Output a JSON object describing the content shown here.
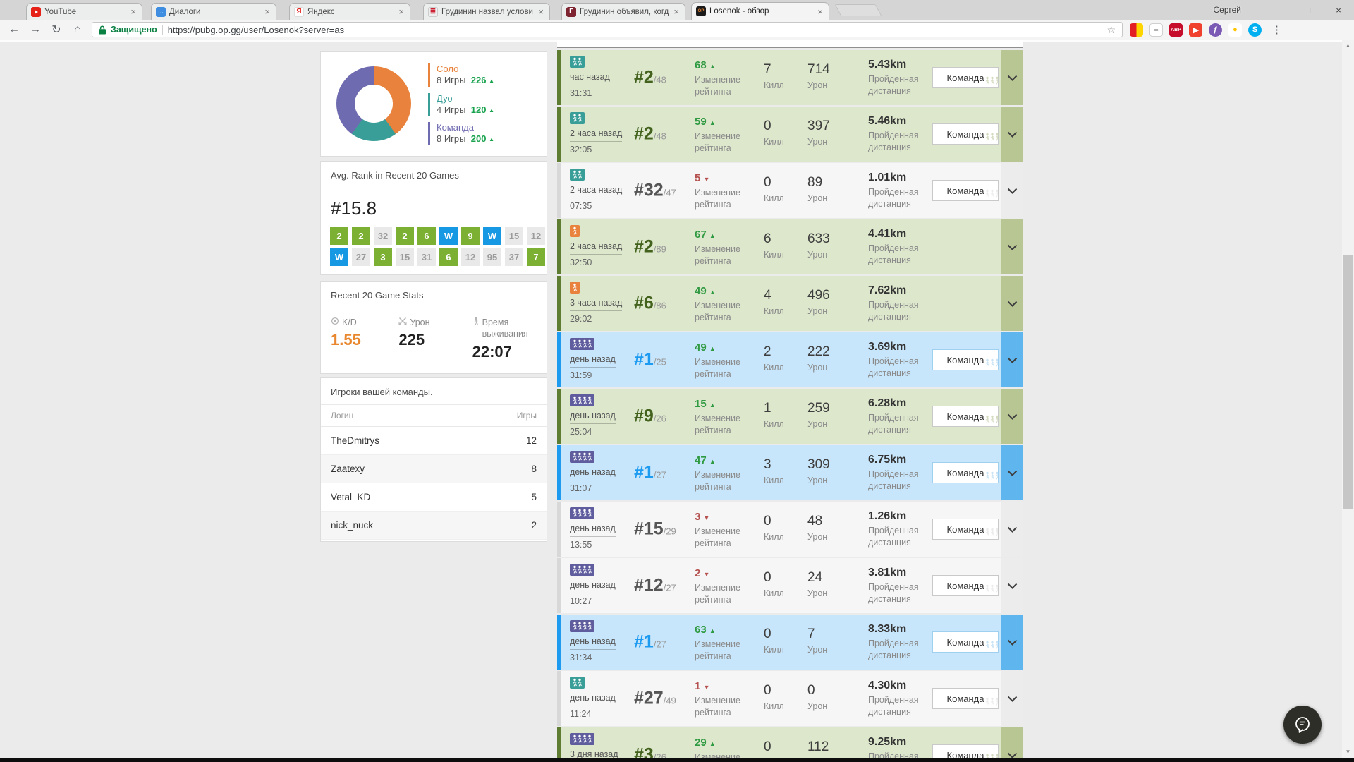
{
  "browser": {
    "profile": "Сергей",
    "window_controls": {
      "minimize": "–",
      "restore": "□",
      "close": "×"
    },
    "tabs": [
      {
        "title": "YouTube",
        "favicon": "youtube",
        "close": "×"
      },
      {
        "title": "Диалоги",
        "favicon": "dialogs",
        "close": "×"
      },
      {
        "title": "Яндекс",
        "favicon": "yandex",
        "close": "×"
      },
      {
        "title": "Грудинин назвал услови",
        "favicon": "news-grey",
        "close": "×"
      },
      {
        "title": "Грудинин объявил, когд",
        "favicon": "news-red",
        "close": "×"
      },
      {
        "title": "Losenok - обзор",
        "favicon": "opgg",
        "close": "×",
        "active": true
      }
    ],
    "nav": {
      "back": "←",
      "forward": "→",
      "reload": "↻",
      "home": "⌂"
    },
    "address": {
      "security": "Защищено",
      "url": "https://pubg.op.gg/user/Losenok?server=as",
      "star": "☆"
    },
    "extensions": [
      {
        "name": "yandex-elements-icon",
        "style": "split",
        "label": "",
        "bg": "",
        "color": ""
      },
      {
        "name": "rings-ext-icon",
        "style": "",
        "label": "≡",
        "bg": "#ffffff",
        "color": "#9a9a9a"
      },
      {
        "name": "adblock-plus-icon",
        "style": "",
        "label": "ABP",
        "bg": "#c70d2c",
        "color": "#ffffff"
      },
      {
        "name": "pointer-ext-icon",
        "style": "",
        "label": "▶",
        "bg": "#f0402e",
        "color": "#ffffff"
      },
      {
        "name": "lightshot-ext-icon",
        "style": "",
        "label": "ƒ",
        "bg": "#7b5ab5",
        "color": "#ffffff"
      },
      {
        "name": "bulb-ext-icon",
        "style": "",
        "label": "●",
        "bg": "#ffffff",
        "color": "#ffc400"
      },
      {
        "name": "skype-ext-icon",
        "style": "",
        "label": "S",
        "bg": "#00aff0",
        "color": "#ffffff"
      }
    ],
    "menu_dots": "⋮"
  },
  "sidebar": {
    "modes": {
      "donut_values": {
        "solo_games": 8,
        "duo_games": 4,
        "squad_games": 8
      },
      "legend": [
        {
          "name": "Соло",
          "games": "8 Игры",
          "value": "226",
          "color": "#e8823c"
        },
        {
          "name": "Дуо",
          "games": "4 Игры",
          "value": "120",
          "color": "#3a9e98"
        },
        {
          "name": "Команда",
          "games": "8 Игры",
          "value": "200",
          "color": "#6f6bb0"
        }
      ]
    },
    "avg_rank": {
      "title": "Avg. Rank in Recent 20 Games",
      "value": "#15.8",
      "tiles": [
        {
          "label": "2",
          "type": "top"
        },
        {
          "label": "2",
          "type": "top"
        },
        {
          "label": "32",
          "type": "out"
        },
        {
          "label": "2",
          "type": "top"
        },
        {
          "label": "6",
          "type": "top"
        },
        {
          "label": "W",
          "type": "win"
        },
        {
          "label": "9",
          "type": "top"
        },
        {
          "label": "W",
          "type": "win"
        },
        {
          "label": "15",
          "type": "out"
        },
        {
          "label": "12",
          "type": "out"
        },
        {
          "label": "W",
          "type": "win"
        },
        {
          "label": "27",
          "type": "out"
        },
        {
          "label": "3",
          "type": "top"
        },
        {
          "label": "15",
          "type": "out"
        },
        {
          "label": "31",
          "type": "out"
        },
        {
          "label": "6",
          "type": "top"
        },
        {
          "label": "12",
          "type": "out"
        },
        {
          "label": "95",
          "type": "out"
        },
        {
          "label": "37",
          "type": "out"
        },
        {
          "label": "7",
          "type": "top"
        }
      ]
    },
    "stats": {
      "title": "Recent 20 Game Stats",
      "items": [
        {
          "icon": "target-icon",
          "label": "K/D",
          "value": "1.55",
          "accent": true
        },
        {
          "icon": "swords-icon",
          "label": "Урон",
          "value": "225",
          "accent": false
        },
        {
          "icon": "runner-icon",
          "label": "Время выживания",
          "value": "22:07",
          "accent": false
        }
      ]
    },
    "team": {
      "title": "Игроки вашей команды.",
      "columns": [
        "Логин",
        "Игры"
      ],
      "rows": [
        {
          "login": "TheDmitrys",
          "games": "12"
        },
        {
          "login": "Zaatexy",
          "games": "8"
        },
        {
          "login": "Vetal_KD",
          "games": "5"
        },
        {
          "login": "nick_nuck",
          "games": "2"
        }
      ]
    }
  },
  "matches": {
    "labels": {
      "rating": "Изменение рейтинга",
      "kills": "Килл",
      "damage": "Урон",
      "distance": "Пройденная дистанция",
      "team": "Команда"
    },
    "rows": [
      {
        "mode": "duo",
        "time_ago": "час назад",
        "duration": "31:31",
        "rank": "#2",
        "of": "/48",
        "change": "68",
        "dir": "up",
        "kills": "7",
        "damage": "714",
        "distance": "5.43km",
        "team": true,
        "style": "green"
      },
      {
        "mode": "duo",
        "time_ago": "2 часа назад",
        "duration": "32:05",
        "rank": "#2",
        "of": "/48",
        "change": "59",
        "dir": "up",
        "kills": "0",
        "damage": "397",
        "distance": "5.46km",
        "team": true,
        "style": "green"
      },
      {
        "mode": "duo",
        "time_ago": "2 часа назад",
        "duration": "07:35",
        "rank": "#32",
        "of": "/47",
        "change": "5",
        "dir": "down",
        "kills": "0",
        "damage": "89",
        "distance": "1.01km",
        "team": true,
        "style": "grey"
      },
      {
        "mode": "solo",
        "time_ago": "2 часа назад",
        "duration": "32:50",
        "rank": "#2",
        "of": "/89",
        "change": "67",
        "dir": "up",
        "kills": "6",
        "damage": "633",
        "distance": "4.41km",
        "team": false,
        "style": "green"
      },
      {
        "mode": "solo",
        "time_ago": "3 часа назад",
        "duration": "29:02",
        "rank": "#6",
        "of": "/86",
        "change": "49",
        "dir": "up",
        "kills": "4",
        "damage": "496",
        "distance": "7.62km",
        "team": false,
        "style": "green"
      },
      {
        "mode": "squad",
        "time_ago": "день назад",
        "duration": "31:59",
        "rank": "#1",
        "of": "/25",
        "change": "49",
        "dir": "up",
        "kills": "2",
        "damage": "222",
        "distance": "3.69km",
        "team": true,
        "style": "blue"
      },
      {
        "mode": "squad",
        "time_ago": "день назад",
        "duration": "25:04",
        "rank": "#9",
        "of": "/26",
        "change": "15",
        "dir": "up",
        "kills": "1",
        "damage": "259",
        "distance": "6.28km",
        "team": true,
        "style": "green"
      },
      {
        "mode": "squad",
        "time_ago": "день назад",
        "duration": "31:07",
        "rank": "#1",
        "of": "/27",
        "change": "47",
        "dir": "up",
        "kills": "3",
        "damage": "309",
        "distance": "6.75km",
        "team": true,
        "style": "blue"
      },
      {
        "mode": "squad",
        "time_ago": "день назад",
        "duration": "13:55",
        "rank": "#15",
        "of": "/29",
        "change": "3",
        "dir": "down",
        "kills": "0",
        "damage": "48",
        "distance": "1.26km",
        "team": true,
        "style": "grey"
      },
      {
        "mode": "squad",
        "time_ago": "день назад",
        "duration": "10:27",
        "rank": "#12",
        "of": "/27",
        "change": "2",
        "dir": "down",
        "kills": "0",
        "damage": "24",
        "distance": "3.81km",
        "team": true,
        "style": "grey"
      },
      {
        "mode": "squad",
        "time_ago": "день назад",
        "duration": "31:34",
        "rank": "#1",
        "of": "/27",
        "change": "63",
        "dir": "up",
        "kills": "0",
        "damage": "7",
        "distance": "8.33km",
        "team": true,
        "style": "blue"
      },
      {
        "mode": "duo",
        "time_ago": "день назад",
        "duration": "11:24",
        "rank": "#27",
        "of": "/49",
        "change": "1",
        "dir": "down",
        "kills": "0",
        "damage": "0",
        "distance": "4.30km",
        "team": true,
        "style": "grey"
      },
      {
        "mode": "squad",
        "time_ago": "3 дня назад",
        "duration": "",
        "rank": "#3",
        "of": "/26",
        "change": "29",
        "dir": "up",
        "kills": "0",
        "damage": "112",
        "distance": "9.25km",
        "team": true,
        "style": "green"
      }
    ]
  }
}
